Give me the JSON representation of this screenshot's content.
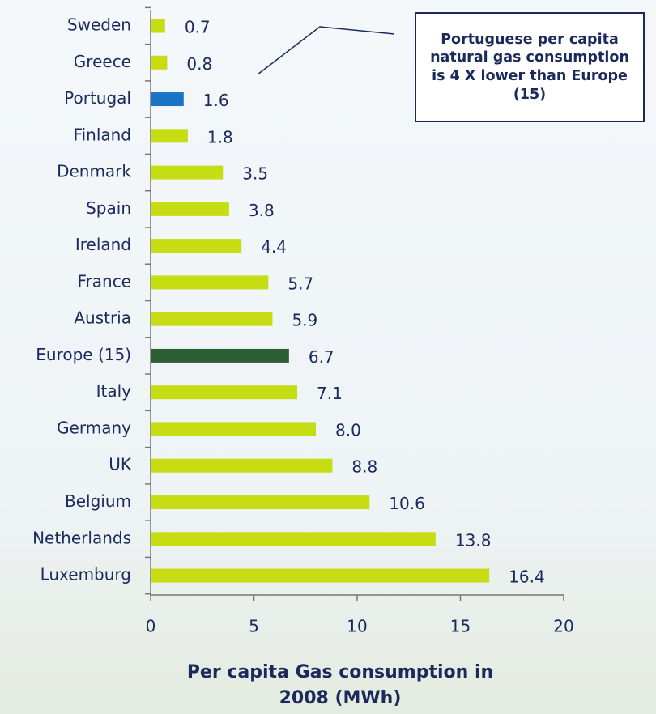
{
  "chart_data": {
    "type": "bar",
    "orientation": "horizontal",
    "categories": [
      "Sweden",
      "Greece",
      "Portugal",
      "Finland",
      "Denmark",
      "Spain",
      "Ireland",
      "France",
      "Austria",
      "Europe (15)",
      "Italy",
      "Germany",
      "UK",
      "Belgium",
      "Netherlands",
      "Luxemburg"
    ],
    "values": [
      0.7,
      0.8,
      1.6,
      1.8,
      3.5,
      3.8,
      4.4,
      5.7,
      5.9,
      6.7,
      7.1,
      8.0,
      8.8,
      10.6,
      13.8,
      16.4
    ],
    "value_labels": [
      "0.7",
      "0.8",
      "1.6",
      "1.8",
      "3.5",
      "3.8",
      "4.4",
      "5.7",
      "5.9",
      "6.7",
      "7.1",
      "8.0",
      "8.8",
      "10.6",
      "13.8",
      "16.4"
    ],
    "colors": [
      "#c5dd12",
      "#c5dd12",
      "#1c74c6",
      "#c5dd12",
      "#c5dd12",
      "#c5dd12",
      "#c5dd12",
      "#c5dd12",
      "#c5dd12",
      "#2d5e33",
      "#c5dd12",
      "#c5dd12",
      "#c5dd12",
      "#c5dd12",
      "#c5dd12",
      "#c5dd12"
    ],
    "xlim": [
      0,
      20
    ],
    "xticks": [
      0,
      5,
      10,
      15,
      20
    ],
    "xlabel": "Per capita Gas consumption in 2008 (MWh)",
    "annotation": "Portuguese per capita natural gas consumption is 4 X lower than Europe (15)"
  }
}
